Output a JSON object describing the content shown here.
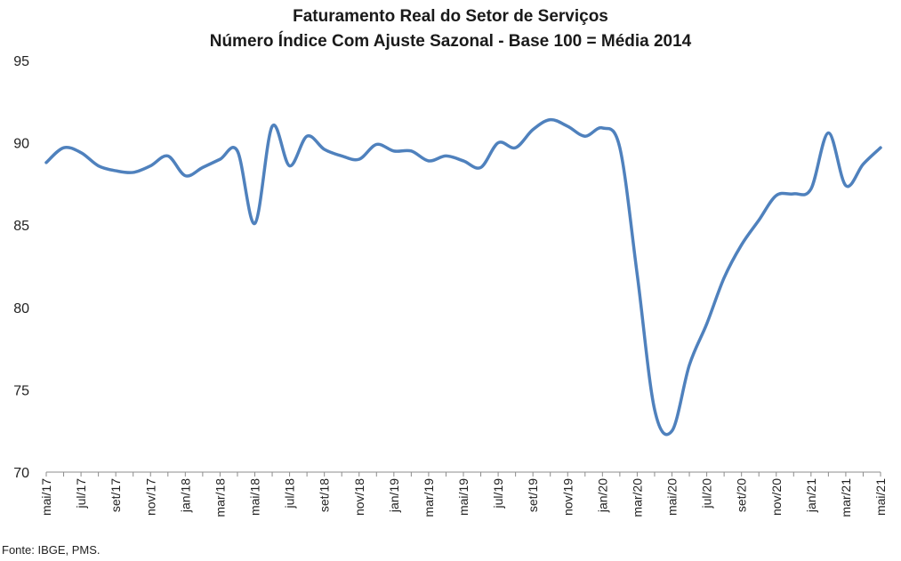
{
  "title": "Faturamento Real do Setor de Serviços",
  "subtitle": "Número Índice Com Ajuste Sazonal - Base 100 = Média 2014",
  "source": "Fonte: IBGE, PMS.",
  "chart_data": {
    "type": "line",
    "title": "Faturamento Real do Setor de Serviços",
    "subtitle": "Número Índice Com Ajuste Sazonal - Base 100 = Média 2014",
    "xlabel": "",
    "ylabel": "",
    "ylim": [
      70,
      95
    ],
    "yticks": [
      70,
      75,
      80,
      85,
      90,
      95
    ],
    "grid": false,
    "line_color": "#4f81bd",
    "x": [
      "mai/17",
      "jun/17",
      "jul/17",
      "ago/17",
      "set/17",
      "out/17",
      "nov/17",
      "dez/17",
      "jan/18",
      "fev/18",
      "mar/18",
      "abr/18",
      "mai/18",
      "jun/18",
      "jul/18",
      "ago/18",
      "set/18",
      "out/18",
      "nov/18",
      "dez/18",
      "jan/19",
      "fev/19",
      "mar/19",
      "abr/19",
      "mai/19",
      "jun/19",
      "jul/19",
      "ago/19",
      "set/19",
      "out/19",
      "nov/19",
      "dez/19",
      "jan/20",
      "fev/20",
      "mar/20",
      "abr/20",
      "mai/20",
      "jun/20",
      "jul/20",
      "ago/20",
      "set/20",
      "out/20",
      "nov/20",
      "dez/20",
      "jan/21",
      "fev/21",
      "mar/21",
      "abr/21",
      "mai/21"
    ],
    "tick_labels": [
      "mai/17",
      "jul/17",
      "set/17",
      "nov/17",
      "jan/18",
      "mar/18",
      "mai/18",
      "jul/18",
      "set/18",
      "nov/18",
      "jan/19",
      "mar/19",
      "mai/19",
      "jul/19",
      "set/19",
      "nov/19",
      "jan/20",
      "mar/20",
      "mai/20",
      "jul/20",
      "set/20",
      "nov/20",
      "jan/21",
      "mar/21",
      "mai/21"
    ],
    "series": [
      {
        "values": [
          88.8,
          89.7,
          89.4,
          88.6,
          88.3,
          88.2,
          88.6,
          89.2,
          88.0,
          88.5,
          89.0,
          89.5,
          85.1,
          91.0,
          88.6,
          90.4,
          89.6,
          89.2,
          89.0,
          89.9,
          89.5,
          89.5,
          88.9,
          89.2,
          88.9,
          88.5,
          90.0,
          89.7,
          90.8,
          91.4,
          91.0,
          90.4,
          90.9,
          89.7,
          82.0,
          73.8,
          72.5,
          76.5,
          79.0,
          81.8,
          83.8,
          85.3,
          86.8,
          86.9,
          87.2,
          90.6,
          87.4,
          88.7,
          89.7
        ]
      }
    ]
  }
}
